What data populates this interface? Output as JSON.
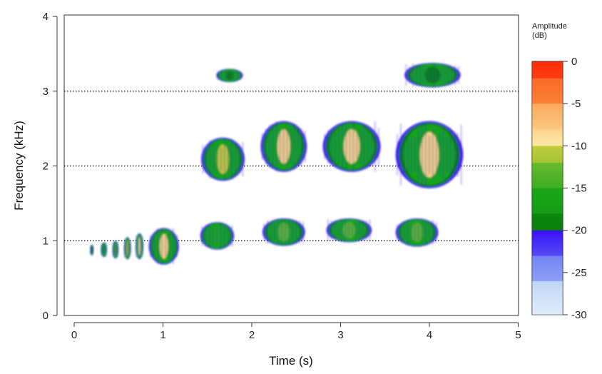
{
  "chart_data": {
    "type": "heatmap",
    "subtype": "spectrogram",
    "xlabel": "Time (s)",
    "ylabel": "Frequency (kHz)",
    "xlim": [
      0,
      5.1
    ],
    "ylim": [
      0,
      4
    ],
    "x_ticks": [
      "0",
      "1",
      "2",
      "3",
      "4",
      "5"
    ],
    "y_ticks": [
      "0",
      "1",
      "2",
      "3",
      "4"
    ],
    "reference_lines_khz": [
      1,
      2,
      3
    ],
    "colorbar": {
      "title_line1": "Amplitude",
      "title_line2": "(dB)",
      "range": [
        -30,
        0
      ],
      "ticks": [
        "0",
        "-5",
        "-10",
        "-15",
        "-20",
        "-25",
        "-30"
      ],
      "colors": {
        "top": "#ff1a00",
        "orange": "#f98a3a",
        "pale_yellow": "#fbe8a6",
        "olive": "#c7c93a",
        "green": "#1aa51a",
        "dark_green": "#0b7f0b",
        "blue": "#3a10f5",
        "light_blue": "#c9dcf7",
        "bottom": "#ffffff"
      }
    },
    "sound_events": [
      {
        "t_start": 0.18,
        "t_end": 0.22,
        "f_low": 0.8,
        "f_high": 0.95,
        "peak_db": -19
      },
      {
        "t_start": 0.3,
        "t_end": 0.37,
        "f_low": 0.78,
        "f_high": 0.98,
        "peak_db": -17
      },
      {
        "t_start": 0.43,
        "t_end": 0.5,
        "f_low": 0.76,
        "f_high": 1.0,
        "peak_db": -14
      },
      {
        "t_start": 0.56,
        "t_end": 0.64,
        "f_low": 0.75,
        "f_high": 1.05,
        "peak_db": -11
      },
      {
        "t_start": 0.69,
        "t_end": 0.78,
        "f_low": 0.75,
        "f_high": 1.1,
        "peak_db": -10
      },
      {
        "t_start": 0.84,
        "t_end": 1.18,
        "f_low": 0.68,
        "f_high": 1.17,
        "peak_db": -7
      },
      {
        "t_start": 1.42,
        "t_end": 1.8,
        "f_low": 0.88,
        "f_high": 1.25,
        "peak_db": -16
      },
      {
        "t_start": 1.43,
        "t_end": 1.92,
        "f_low": 1.8,
        "f_high": 2.38,
        "peak_db": -12
      },
      {
        "t_start": 1.6,
        "t_end": 1.9,
        "f_low": 3.12,
        "f_high": 3.3,
        "peak_db": -20
      },
      {
        "t_start": 2.1,
        "t_end": 2.62,
        "f_low": 1.92,
        "f_high": 2.6,
        "peak_db": -7
      },
      {
        "t_start": 2.12,
        "t_end": 2.6,
        "f_low": 0.93,
        "f_high": 1.3,
        "peak_db": -15
      },
      {
        "t_start": 2.8,
        "t_end": 3.45,
        "f_low": 1.92,
        "f_high": 2.6,
        "peak_db": -6
      },
      {
        "t_start": 2.84,
        "t_end": 3.35,
        "f_low": 0.98,
        "f_high": 1.3,
        "peak_db": -14
      },
      {
        "t_start": 3.62,
        "t_end": 4.38,
        "f_low": 1.7,
        "f_high": 2.6,
        "peak_db": -7
      },
      {
        "t_start": 3.62,
        "t_end": 4.1,
        "f_low": 0.92,
        "f_high": 1.3,
        "peak_db": -15
      },
      {
        "t_start": 3.72,
        "t_end": 4.35,
        "f_low": 3.05,
        "f_high": 3.38,
        "peak_db": -19
      }
    ]
  }
}
